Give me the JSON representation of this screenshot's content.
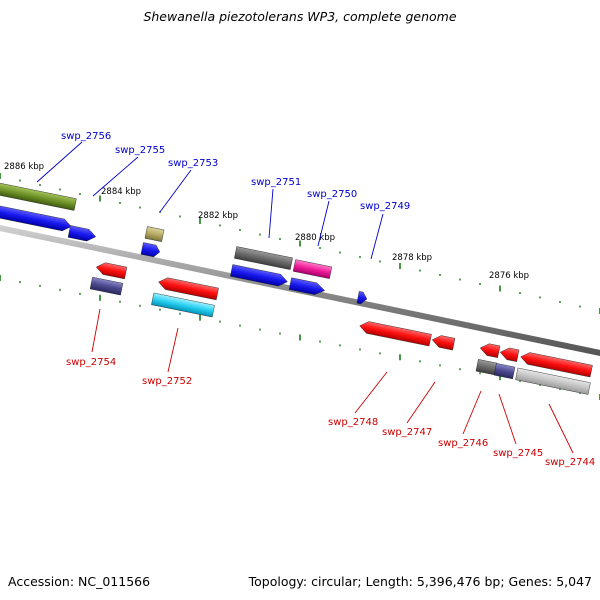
{
  "title": "Shewanella piezotolerans WP3, complete genome",
  "footer": {
    "accession": "Accession: NC_011566",
    "summary": "Topology: circular; Length: 5,396,476 bp; Genes: 5,047"
  },
  "colors": {
    "backbone": "#8a8a8a",
    "tick": "#1a7a1a",
    "forward_label": "#0000cc",
    "reverse_label": "#cc0000"
  },
  "scale_labels": [
    "2886 kbp",
    "2884 kbp",
    "2882 kbp",
    "2880 kbp",
    "2878 kbp",
    "2876 kbp"
  ],
  "forward_gene_labels": [
    "swp_2756",
    "swp_2755",
    "swp_2753",
    "swp_2751",
    "swp_2750",
    "swp_2749"
  ],
  "reverse_gene_labels": [
    "swp_2754",
    "swp_2752",
    "swp_2748",
    "swp_2747",
    "swp_2746",
    "swp_2745",
    "swp_2744"
  ]
}
